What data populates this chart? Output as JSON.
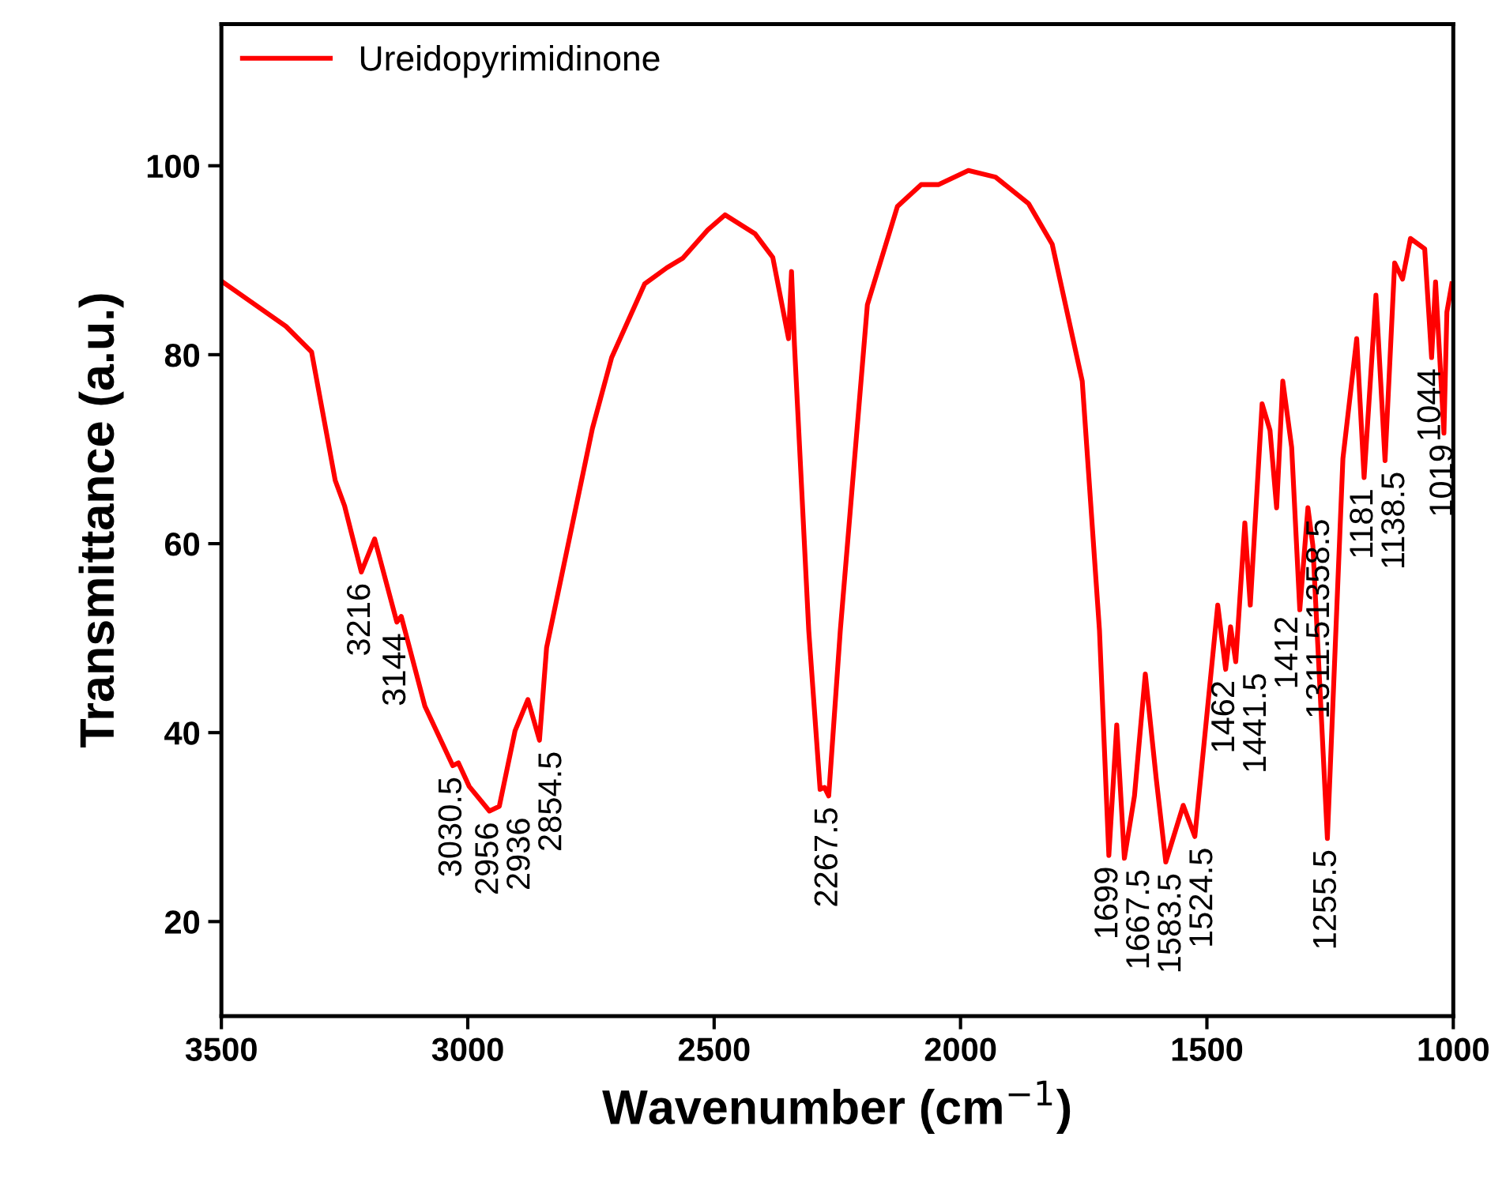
{
  "chart_data": {
    "type": "line",
    "xlabel": "Wavenumber (cm$^{−1}$)",
    "ylabel": "Transmittance (a.u.)",
    "xlim": [
      3500,
      1000
    ],
    "ylim": [
      10,
      115
    ],
    "xticks": [
      3500,
      3000,
      2500,
      2000,
      1500,
      1000
    ],
    "yticks": [
      20,
      40,
      60,
      80,
      100
    ],
    "grid": false,
    "legend": "top left",
    "marker": "none",
    "line_style": "solid",
    "series": [
      {
        "name": "Ureidopyrimidinone",
        "color": "#ff0000",
        "x": [
          3500,
          3369,
          3317,
          3269,
          3250,
          3216,
          3189,
          3144,
          3135,
          3087,
          3030.5,
          3019,
          2997,
          2956,
          2936,
          2904,
          2878,
          2854.5,
          2840,
          2747,
          2708,
          2641,
          2596,
          2564,
          2513,
          2478,
          2417,
          2381,
          2349,
          2343,
          2337,
          2308,
          2285,
          2276,
          2267.5,
          2244,
          2189,
          2128,
          2080,
          2045,
          1984,
          1929,
          1862,
          1814,
          1753,
          1718,
          1699,
          1683,
          1667.5,
          1647,
          1625,
          1603,
          1583.5,
          1548,
          1524.5,
          1478,
          1462,
          1452,
          1441.5,
          1423,
          1412,
          1388,
          1372,
          1358.5,
          1346,
          1328,
          1311.5,
          1295,
          1285,
          1255.5,
          1224,
          1196,
          1181,
          1157,
          1138.5,
          1119,
          1103,
          1087,
          1058,
          1044,
          1036,
          1019,
          1013,
          1003
        ],
        "values": [
          87.8,
          83,
          80.3,
          66.7,
          64,
          57,
          60.5,
          51.7,
          52.3,
          42.8,
          36.5,
          36.8,
          34.3,
          31.7,
          32.2,
          40.2,
          43.5,
          39.2,
          49,
          72.2,
          79.7,
          87.5,
          89.2,
          90.2,
          93.2,
          94.8,
          92.8,
          90.3,
          81.7,
          88.8,
          81,
          50.8,
          34,
          34.2,
          33.3,
          50.8,
          85.3,
          95.7,
          98,
          98,
          99.5,
          98.8,
          96,
          91.7,
          77.2,
          50.8,
          27,
          40.8,
          26.7,
          33.3,
          46.2,
          35.2,
          26.3,
          32.3,
          29,
          53.5,
          46.7,
          51.2,
          47.5,
          62.2,
          53.5,
          74.8,
          72,
          63.8,
          77.2,
          70.2,
          53,
          63.8,
          59.8,
          28.8,
          69,
          81.7,
          67,
          86.3,
          68.8,
          89.7,
          88,
          92.3,
          91.2,
          79.7,
          87.7,
          71.7,
          84.5,
          87.5
        ]
      }
    ],
    "annotations": [
      {
        "text": "3216",
        "x": 3216,
        "y": 57
      },
      {
        "text": "3144",
        "x": 3144,
        "y": 51.7
      },
      {
        "text": "3030.5",
        "x": 3030.5,
        "y": 36.5
      },
      {
        "text": "2956",
        "x": 2956,
        "y": 31.7
      },
      {
        "text": "2936",
        "x": 2936,
        "y": 32.2
      },
      {
        "text": "2854.5",
        "x": 2854.5,
        "y": 39.2
      },
      {
        "text": "2267.5",
        "x": 2267.5,
        "y": 33.3
      },
      {
        "text": "1699",
        "x": 1699,
        "y": 27
      },
      {
        "text": "1667.5",
        "x": 1667.5,
        "y": 26.7
      },
      {
        "text": "1583.5",
        "x": 1583.5,
        "y": 26.3
      },
      {
        "text": "1524.5",
        "x": 1524.5,
        "y": 29
      },
      {
        "text": "1462",
        "x": 1462,
        "y": 46.7
      },
      {
        "text": "1441.5",
        "x": 1441.5,
        "y": 47.5
      },
      {
        "text": "1412",
        "x": 1412,
        "y": 53.5
      },
      {
        "text": "1358.5",
        "x": 1358.5,
        "y": 63.8
      },
      {
        "text": "1311.5",
        "x": 1311.5,
        "y": 53
      },
      {
        "text": "1255.5",
        "x": 1255.5,
        "y": 28.8
      },
      {
        "text": "1181",
        "x": 1181,
        "y": 67
      },
      {
        "text": "1138.5",
        "x": 1138.5,
        "y": 68.8
      },
      {
        "text": "1044",
        "x": 1044,
        "y": 79.7
      },
      {
        "text": "1019",
        "x": 1019,
        "y": 71.7
      }
    ]
  }
}
